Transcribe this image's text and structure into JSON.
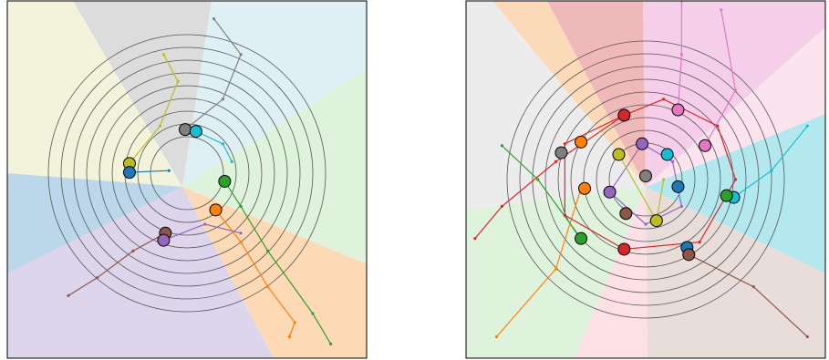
{
  "chart_data": [
    {
      "type": "scatter",
      "xlim": [
        -1,
        1
      ],
      "ylim": [
        -1,
        1
      ],
      "lines": [
        {
          "color": "#8c564b",
          "x": [
            -0.12,
            -0.3,
            -0.5,
            -0.66
          ],
          "y": [
            -0.3,
            -0.4,
            -0.55,
            -0.65
          ]
        },
        {
          "color": "#ff7f0e",
          "x": [
            0.16,
            0.3,
            0.45,
            0.6,
            0.57
          ],
          "y": [
            -0.17,
            -0.35,
            -0.6,
            -0.8,
            -0.88
          ]
        },
        {
          "color": "#2ca02c",
          "x": [
            0.21,
            0.3,
            0.45,
            0.7,
            0.8
          ],
          "y": [
            -0.01,
            -0.15,
            -0.4,
            -0.75,
            -0.92
          ]
        },
        {
          "color": "#7f7f7f",
          "x": [
            -0.01,
            0.2,
            0.3,
            0.15
          ],
          "y": [
            0.28,
            0.45,
            0.7,
            0.9
          ]
        },
        {
          "color": "#bcbd22",
          "x": [
            -0.32,
            -0.15,
            -0.05,
            -0.13
          ],
          "y": [
            0.09,
            0.3,
            0.55,
            0.7
          ]
        },
        {
          "color": "#17becf",
          "x": [
            0.05,
            0.2,
            0.25
          ],
          "y": [
            0.27,
            0.2,
            0.1
          ]
        },
        {
          "color": "#9467bd",
          "x": [
            -0.13,
            0.1,
            0.3
          ],
          "y": [
            -0.34,
            -0.25,
            -0.3
          ]
        },
        {
          "color": "#1f77b4",
          "x": [
            -0.32,
            -0.1
          ],
          "y": [
            0.04,
            0.05
          ]
        }
      ],
      "series": [
        {
          "color": "#7f7f7f",
          "x": [
            -0.01
          ],
          "y": [
            0.28
          ]
        },
        {
          "color": "#17becf",
          "x": [
            0.05
          ],
          "y": [
            0.27
          ]
        },
        {
          "color": "#bcbd22",
          "x": [
            -0.32
          ],
          "y": [
            0.09
          ]
        },
        {
          "color": "#1f77b4",
          "x": [
            -0.32
          ],
          "y": [
            0.04
          ]
        },
        {
          "color": "#2ca02c",
          "x": [
            0.21
          ],
          "y": [
            -0.01
          ]
        },
        {
          "color": "#ff7f0e",
          "x": [
            0.16
          ],
          "y": [
            -0.17
          ]
        },
        {
          "color": "#8c564b",
          "x": [
            -0.12
          ],
          "y": [
            -0.3
          ]
        },
        {
          "color": "#9467bd",
          "x": [
            -0.13
          ],
          "y": [
            -0.34
          ]
        }
      ]
    },
    {
      "type": "scatter",
      "xlim": [
        -1,
        1
      ],
      "ylim": [
        -1,
        1
      ],
      "lines": [
        {
          "color": "#e377c2",
          "x": [
            0.18,
            0.2,
            0.2
          ],
          "y": [
            0.39,
            0.7,
            1.0
          ]
        },
        {
          "color": "#e377c2",
          "x": [
            0.33,
            0.5,
            0.42
          ],
          "y": [
            0.19,
            0.5,
            0.95
          ]
        },
        {
          "color": "#d62728",
          "x": [
            -0.12,
            -0.5,
            -0.8,
            -0.95
          ],
          "y": [
            0.36,
            0.1,
            -0.15,
            -0.33
          ]
        },
        {
          "color": "#ff7f0e",
          "x": [
            -0.36,
            -0.5,
            -0.83
          ],
          "y": [
            -0.05,
            -0.5,
            -0.88
          ]
        },
        {
          "color": "#8c564b",
          "x": [
            0.24,
            0.6,
            0.9
          ],
          "y": [
            -0.42,
            -0.6,
            -0.88
          ]
        },
        {
          "color": "#17becf",
          "x": [
            0.49,
            0.7,
            0.9
          ],
          "y": [
            -0.1,
            0.05,
            0.3
          ]
        },
        {
          "color": "#2ca02c",
          "x": [
            -0.36,
            -0.6,
            -0.8
          ],
          "y": [
            -0.33,
            0.0,
            0.19
          ]
        },
        {
          "color": "#d62728",
          "x": [
            -0.12,
            0.1,
            0.4,
            0.5,
            0.3,
            -0.12,
            -0.45,
            -0.45,
            -0.12
          ],
          "y": [
            0.36,
            0.45,
            0.3,
            0,
            -0.35,
            -0.39,
            -0.2,
            0.2,
            0.36
          ]
        },
        {
          "color": "#9467bd",
          "x": [
            -0.02,
            0.15,
            0.2,
            0,
            -0.2,
            -0.02
          ],
          "y": [
            0.2,
            0.1,
            -0.15,
            -0.25,
            -0.07,
            0.2
          ]
        },
        {
          "color": "#bcbd22",
          "x": [
            -0.15,
            0.06,
            0.1
          ],
          "y": [
            0.14,
            -0.23,
            0
          ]
        }
      ],
      "series": [
        {
          "color": "#d62728",
          "x": [
            -0.12,
            -0.12
          ],
          "y": [
            0.36,
            -0.39
          ]
        },
        {
          "color": "#e377c2",
          "x": [
            0.18,
            0.33
          ],
          "y": [
            0.39,
            0.19
          ]
        },
        {
          "color": "#7f7f7f",
          "x": [
            -0.47,
            0
          ],
          "y": [
            0.15,
            0.02
          ]
        },
        {
          "color": "#ff7f0e",
          "x": [
            -0.36,
            -0.34
          ],
          "y": [
            0.21,
            -0.05
          ]
        },
        {
          "color": "#9467bd",
          "x": [
            -0.02,
            -0.2
          ],
          "y": [
            0.2,
            -0.07
          ]
        },
        {
          "color": "#bcbd22",
          "x": [
            -0.15,
            0.06
          ],
          "y": [
            0.14,
            -0.23
          ]
        },
        {
          "color": "#17becf",
          "x": [
            0.12,
            0.49
          ],
          "y": [
            0.14,
            -0.1
          ]
        },
        {
          "color": "#1f77b4",
          "x": [
            0.18,
            0.23
          ],
          "y": [
            -0.04,
            -0.38
          ]
        },
        {
          "color": "#2ca02c",
          "x": [
            0.45,
            -0.36
          ],
          "y": [
            -0.09,
            -0.33
          ]
        },
        {
          "color": "#8c564b",
          "x": [
            -0.11,
            0.24
          ],
          "y": [
            -0.19,
            -0.42
          ]
        }
      ]
    }
  ]
}
